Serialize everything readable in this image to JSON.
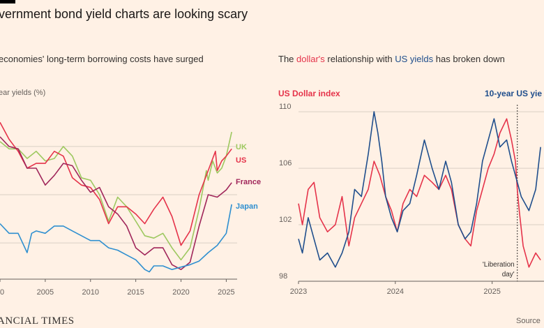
{
  "title": "vernment bond yield charts are looking scary",
  "footer": {
    "logo": "ANCIAL TIMES",
    "source": "Source"
  },
  "chart_data": [
    {
      "type": "line",
      "subtitle": "economies' long-term borrowing costs have surged",
      "ylabel": "ear yields (%)",
      "x_ticks": [
        "0",
        "2005",
        "2010",
        "2015",
        "2020",
        "2025"
      ],
      "xlim": [
        2000,
        2026.2
      ],
      "grid": "horizontal",
      "series": [
        {
          "name": "UK",
          "color": "#9dc85f",
          "x": [
            2000,
            2001,
            2002,
            2003,
            2004,
            2005,
            2006,
            2007,
            2008,
            2009,
            2010,
            2011,
            2012,
            2013,
            2014,
            2015,
            2016,
            2017,
            2018,
            2019,
            2020,
            2021,
            2022,
            2022.8,
            2023,
            2023.5,
            2024,
            2024.5,
            2025,
            2025.6
          ],
          "y": [
            5.2,
            4.9,
            4.9,
            4.5,
            4.8,
            4.4,
            4.5,
            5.0,
            4.6,
            3.7,
            3.6,
            3.0,
            1.9,
            2.9,
            2.5,
            1.9,
            1.3,
            1.2,
            1.4,
            0.8,
            0.3,
            0.8,
            2.4,
            4.0,
            3.6,
            4.4,
            3.9,
            4.1,
            4.6,
            5.6
          ]
        },
        {
          "name": "US",
          "color": "#e5334a",
          "x": [
            2000,
            2001,
            2002,
            2003,
            2004,
            2005,
            2006,
            2007,
            2008,
            2009,
            2010,
            2011,
            2012,
            2013,
            2014,
            2015,
            2016,
            2017,
            2018,
            2019,
            2020,
            2021,
            2022,
            2023,
            2023.8,
            2024,
            2024.5,
            2025,
            2025.6
          ],
          "y": [
            6.0,
            5.3,
            4.8,
            4.1,
            4.3,
            4.3,
            4.8,
            4.6,
            3.7,
            3.4,
            3.3,
            2.8,
            1.8,
            2.5,
            2.5,
            2.2,
            1.8,
            2.4,
            2.9,
            2.1,
            0.9,
            1.5,
            3.0,
            4.0,
            4.8,
            4.0,
            4.4,
            4.6,
            4.9
          ]
        },
        {
          "name": "France",
          "color": "#a0265a",
          "x": [
            2000,
            2001,
            2002,
            2003,
            2004,
            2005,
            2006,
            2007,
            2008,
            2009,
            2010,
            2011,
            2012,
            2013,
            2014,
            2015,
            2016,
            2017,
            2018,
            2019,
            2020,
            2021,
            2022,
            2023,
            2024,
            2025,
            2025.6
          ],
          "y": [
            5.4,
            5.0,
            4.9,
            4.1,
            4.1,
            3.4,
            3.8,
            4.3,
            4.2,
            3.6,
            3.1,
            3.3,
            2.5,
            2.2,
            1.7,
            0.8,
            0.5,
            0.8,
            0.8,
            0.1,
            -0.1,
            0.2,
            1.7,
            3.0,
            2.9,
            3.2,
            3.5
          ]
        },
        {
          "name": "Japan",
          "color": "#2e8fd0",
          "x": [
            2000,
            2001,
            2002,
            2003,
            2003.5,
            2004,
            2005,
            2006,
            2007,
            2008,
            2009,
            2010,
            2011,
            2012,
            2013,
            2014,
            2015,
            2016,
            2016.5,
            2017,
            2018,
            2019,
            2020,
            2021,
            2022,
            2023,
            2024,
            2025,
            2025.6
          ],
          "y": [
            1.8,
            1.4,
            1.4,
            0.6,
            1.4,
            1.5,
            1.4,
            1.7,
            1.7,
            1.5,
            1.3,
            1.1,
            1.1,
            0.8,
            0.7,
            0.5,
            0.3,
            -0.1,
            -0.2,
            0.05,
            0.05,
            -0.1,
            0.0,
            0.1,
            0.25,
            0.6,
            0.9,
            1.4,
            2.6
          ]
        }
      ]
    },
    {
      "type": "line",
      "subtitle_parts": [
        "The ",
        "dollar's",
        " relationship with ",
        "US yields",
        " has broken down"
      ],
      "left_axis_label": "US Dollar index",
      "right_axis_label": "10-year US yie",
      "y_ticks": [
        98,
        102,
        106,
        110
      ],
      "ylim": [
        98,
        110.5
      ],
      "x_ticks": [
        "2023",
        "2024",
        "2025"
      ],
      "xlim": [
        2023.0,
        2025.55
      ],
      "annotation": {
        "text_line1": "'Liberation",
        "text_line2": "day'",
        "x": 2025.26
      },
      "series": [
        {
          "name": "US Dollar index",
          "color": "#e5334a",
          "x": [
            2023.0,
            2023.04,
            2023.1,
            2023.16,
            2023.22,
            2023.3,
            2023.38,
            2023.45,
            2023.52,
            2023.58,
            2023.65,
            2023.72,
            2023.78,
            2023.84,
            2023.9,
            2023.96,
            2024.02,
            2024.08,
            2024.15,
            2024.22,
            2024.3,
            2024.38,
            2024.45,
            2024.52,
            2024.58,
            2024.65,
            2024.72,
            2024.78,
            2024.84,
            2024.9,
            2024.96,
            2025.02,
            2025.08,
            2025.15,
            2025.2,
            2025.24,
            2025.26,
            2025.28,
            2025.32,
            2025.38,
            2025.45,
            2025.5
          ],
          "y": [
            103.5,
            102.0,
            104.5,
            105.0,
            102.5,
            101.5,
            102.0,
            104.0,
            100.5,
            102.5,
            103.5,
            104.5,
            106.5,
            105.5,
            104.0,
            103.0,
            101.5,
            103.5,
            104.5,
            104.0,
            105.5,
            105.0,
            104.5,
            105.5,
            104.5,
            102.0,
            101.0,
            100.5,
            103.0,
            104.5,
            106.0,
            107.0,
            108.5,
            109.5,
            108.0,
            106.5,
            104.5,
            103.0,
            100.5,
            99.0,
            100.0,
            99.5
          ]
        },
        {
          "name": "10-year US yields",
          "color": "#1f4e8c",
          "x": [
            2023.0,
            2023.04,
            2023.1,
            2023.16,
            2023.22,
            2023.3,
            2023.38,
            2023.45,
            2023.52,
            2023.58,
            2023.65,
            2023.72,
            2023.78,
            2023.82,
            2023.86,
            2023.9,
            2023.96,
            2024.02,
            2024.08,
            2024.15,
            2024.22,
            2024.3,
            2024.38,
            2024.45,
            2024.52,
            2024.58,
            2024.65,
            2024.72,
            2024.78,
            2024.84,
            2024.9,
            2024.96,
            2025.02,
            2025.08,
            2025.15,
            2025.2,
            2025.24,
            2025.3,
            2025.38,
            2025.45,
            2025.5
          ],
          "y": [
            101.0,
            100.0,
            102.5,
            101.0,
            99.5,
            100.0,
            99.0,
            100.0,
            101.5,
            104.5,
            104.0,
            107.0,
            110.0,
            108.5,
            106.5,
            104.0,
            102.5,
            101.5,
            103.0,
            103.5,
            105.5,
            108.0,
            106.0,
            104.5,
            106.5,
            105.0,
            102.0,
            101.0,
            101.5,
            103.5,
            106.5,
            108.0,
            109.5,
            107.5,
            108.0,
            106.5,
            105.5,
            104.0,
            103.0,
            104.5,
            107.5
          ]
        }
      ]
    }
  ]
}
